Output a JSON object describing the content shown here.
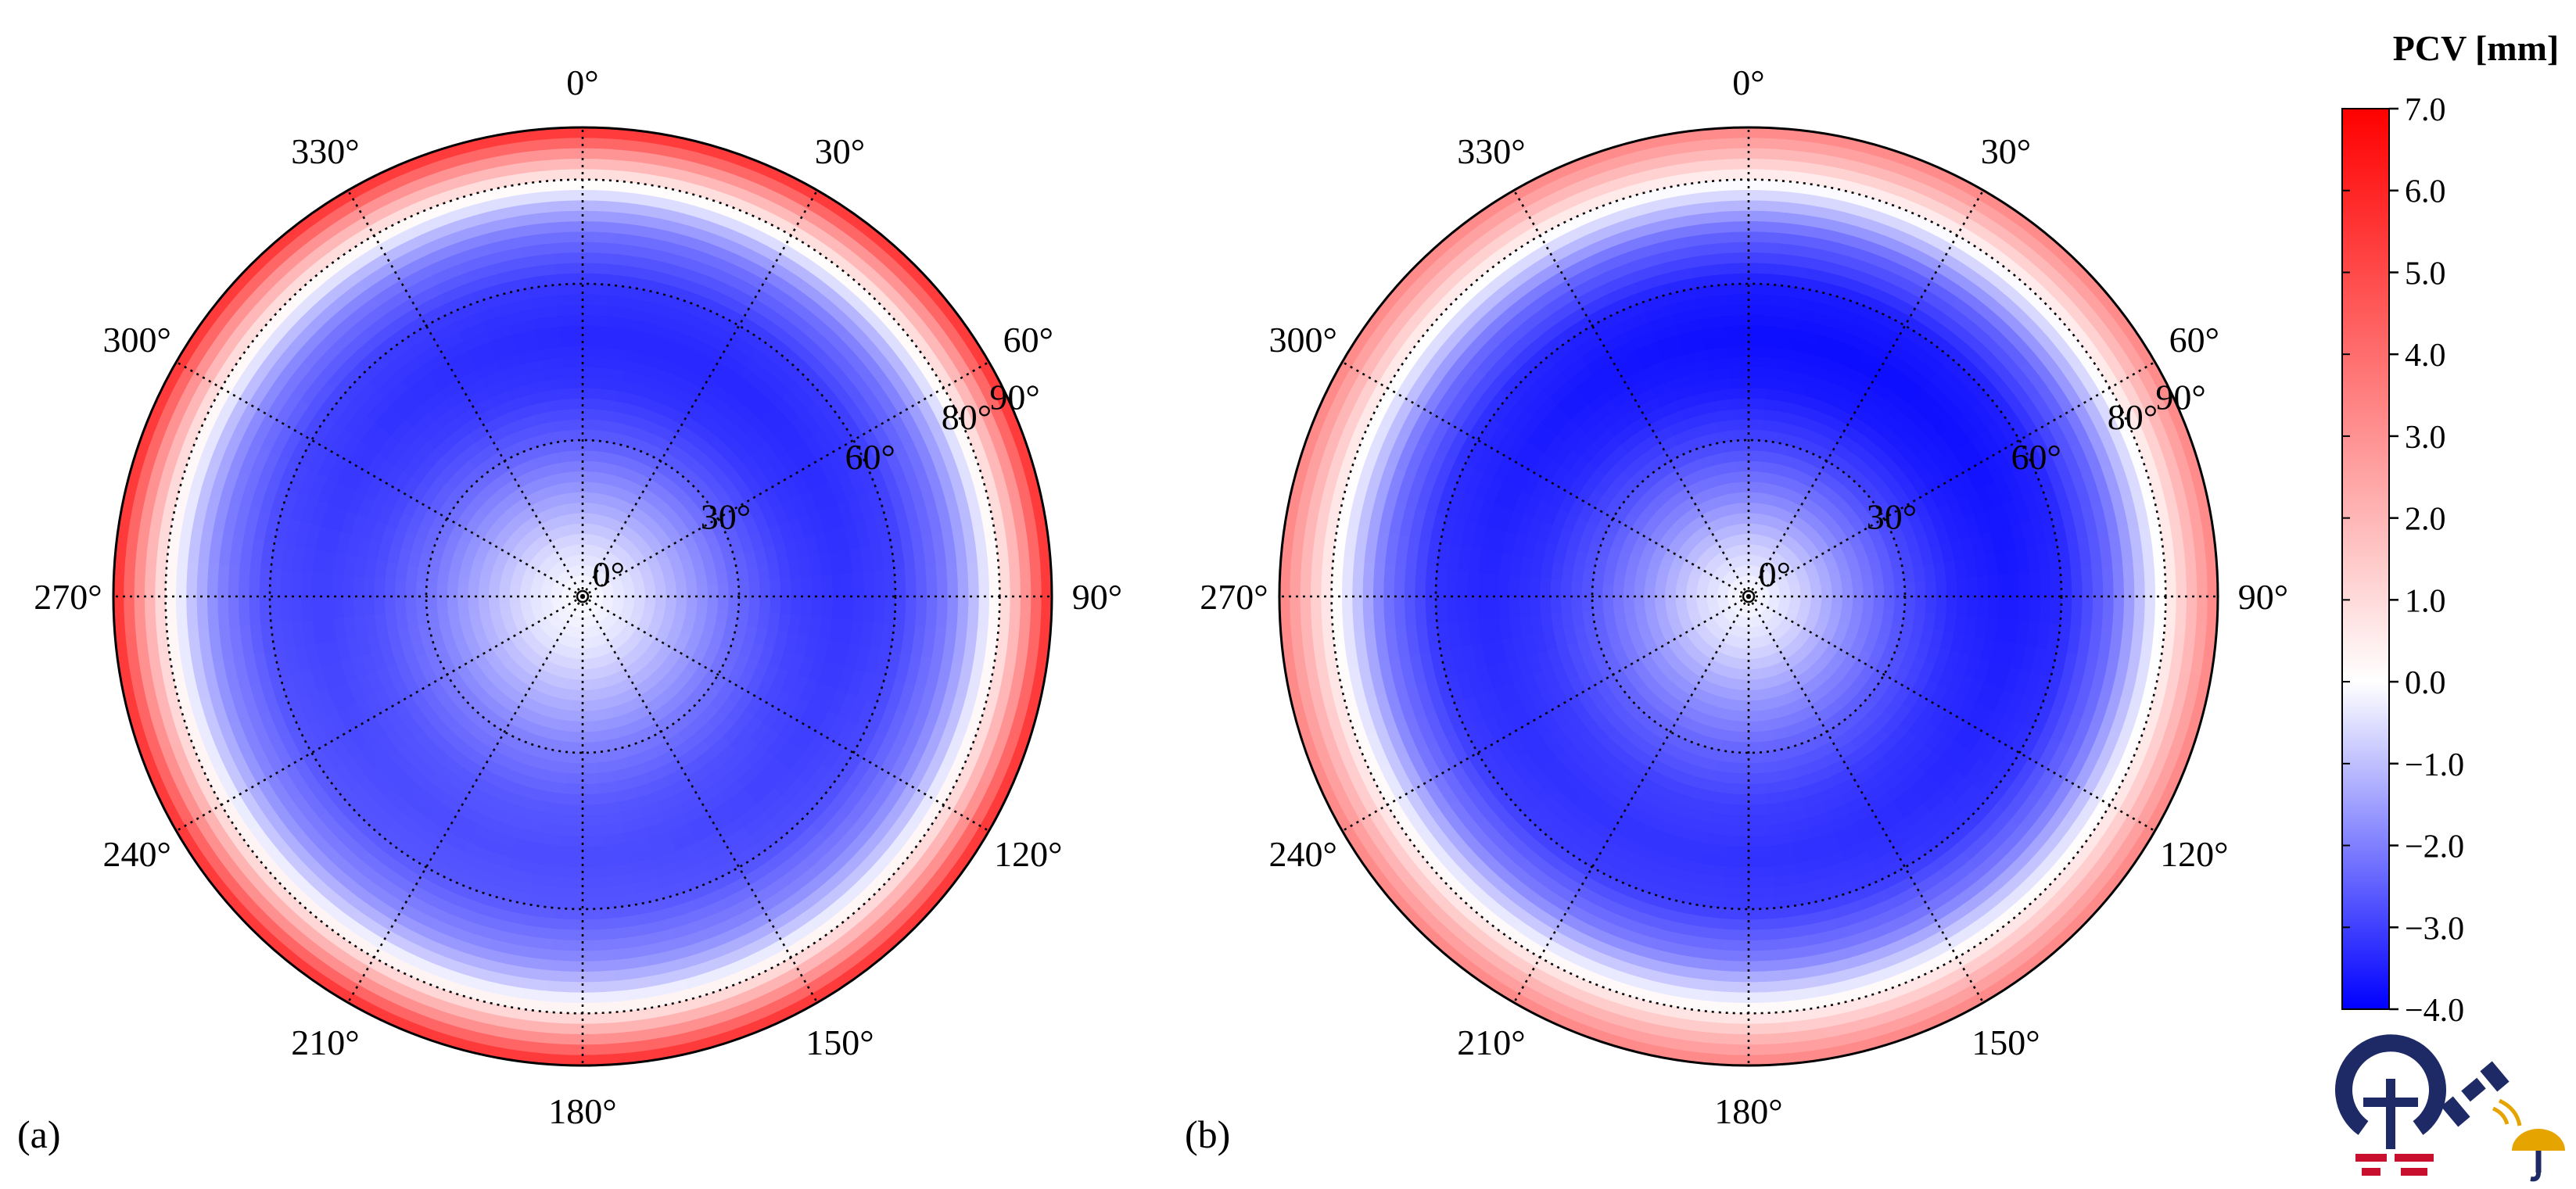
{
  "chart_data": [
    {
      "type": "heatmap",
      "projection": "polar",
      "panel_label": "(a)",
      "azimuth_tick_labels": [
        "0°",
        "30°",
        "60°",
        "90°",
        "120°",
        "150°",
        "180°",
        "210°",
        "240°",
        "270°",
        "300°",
        "330°"
      ],
      "radial_tick_labels": [
        "0°",
        "30°",
        "60°",
        "80°",
        "90°"
      ],
      "radial_axis_values": [
        0,
        30,
        60,
        80,
        90
      ],
      "grid": true,
      "radial_profile": {
        "zenith_angle": [
          0,
          10,
          20,
          30,
          40,
          50,
          60,
          70,
          75,
          80,
          85,
          90
        ],
        "pcv_mm": [
          0.0,
          -0.5,
          -1.4,
          -2.3,
          -2.9,
          -3.1,
          -2.9,
          -2.0,
          -1.0,
          0.5,
          3.0,
          6.0
        ]
      },
      "azimuthal_modulation_mm": 0.3
    },
    {
      "type": "heatmap",
      "projection": "polar",
      "panel_label": "(b)",
      "azimuth_tick_labels": [
        "0°",
        "30°",
        "60°",
        "90°",
        "120°",
        "150°",
        "180°",
        "210°",
        "240°",
        "270°",
        "300°",
        "330°"
      ],
      "radial_tick_labels": [
        "0°",
        "30°",
        "60°",
        "80°",
        "90°"
      ],
      "radial_axis_values": [
        0,
        30,
        60,
        80,
        90
      ],
      "grid": true,
      "radial_profile": {
        "zenith_angle": [
          0,
          10,
          20,
          30,
          40,
          50,
          60,
          70,
          75,
          80,
          85,
          90
        ],
        "pcv_mm": [
          0.0,
          -0.7,
          -1.8,
          -2.7,
          -3.3,
          -3.5,
          -3.3,
          -2.2,
          -1.0,
          0.3,
          2.0,
          3.5
        ]
      },
      "azimuthal_modulation_mm": 0.3
    }
  ],
  "colorbar": {
    "title": "PCV [mm]",
    "min": -4.0,
    "max": 7.0,
    "ticks": [
      "7.0",
      "6.0",
      "5.0",
      "4.0",
      "3.0",
      "2.0",
      "1.0",
      "0.0",
      "−1.0",
      "−2.0",
      "−3.0",
      "−4.0"
    ],
    "colors": {
      "low": "#0000ff",
      "mid": "#ffffff",
      "high": "#ff0000"
    }
  },
  "logos": [
    "geodesy-institute-logo",
    "satellite-icon",
    "antenna-umbrella-icon"
  ]
}
